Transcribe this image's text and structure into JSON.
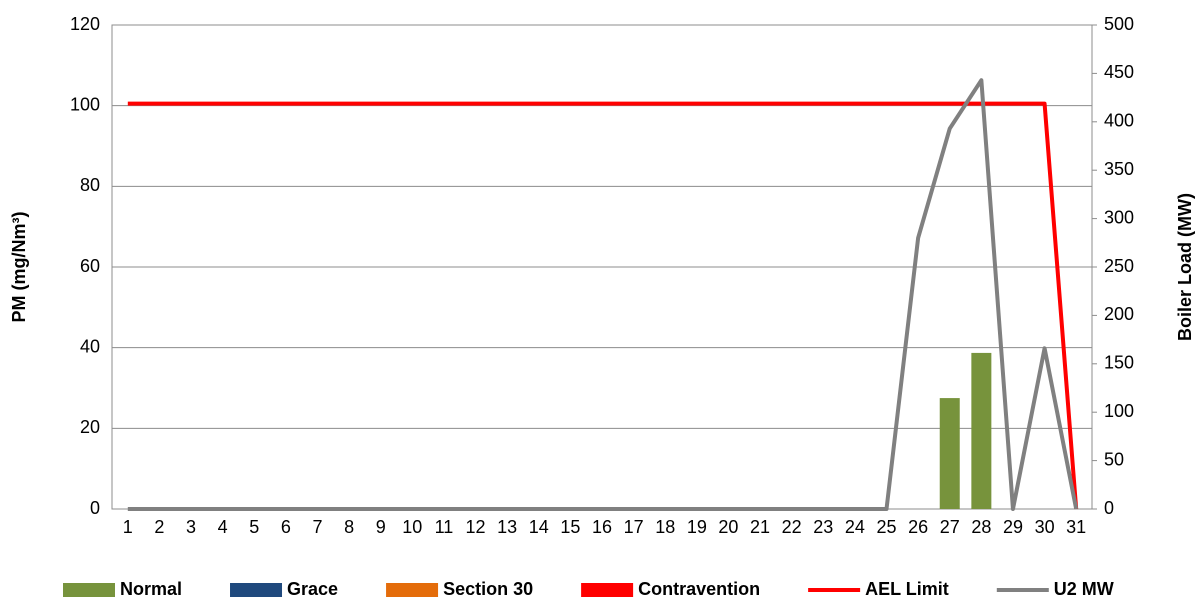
{
  "chart_data": {
    "type": "bar",
    "y_label": "PM (mg/Nm³)",
    "y2_label": "Boiler Load (MW)",
    "categories": [
      "1",
      "2",
      "3",
      "4",
      "5",
      "6",
      "7",
      "8",
      "9",
      "10",
      "11",
      "12",
      "13",
      "14",
      "15",
      "16",
      "17",
      "18",
      "19",
      "20",
      "21",
      "22",
      "23",
      "24",
      "25",
      "26",
      "27",
      "28",
      "29",
      "30",
      "31"
    ],
    "ylim": [
      0,
      120
    ],
    "yticks": [
      0,
      20,
      40,
      60,
      80,
      100,
      120
    ],
    "y2lim": [
      0,
      500
    ],
    "y2ticks": [
      0,
      50,
      100,
      150,
      200,
      250,
      300,
      350,
      400,
      450,
      500
    ],
    "grid": true,
    "stacked": true,
    "legend": "bottom",
    "series": [
      {
        "name": "Normal",
        "type": "bar",
        "color": "#77933c",
        "values": [
          0,
          0,
          0,
          0,
          0,
          0,
          0,
          0,
          0,
          0,
          0,
          0,
          0,
          0,
          0,
          0,
          0,
          0,
          0,
          0,
          0,
          0,
          0,
          0,
          0,
          0,
          27.5,
          38.7,
          0,
          0,
          0
        ]
      },
      {
        "name": "Grace",
        "type": "bar",
        "color": "#1f497d",
        "values": [
          0,
          0,
          0,
          0,
          0,
          0,
          0,
          0,
          0,
          0,
          0,
          0,
          0,
          0,
          0,
          0,
          0,
          0,
          0,
          0,
          0,
          0,
          0,
          0,
          0,
          0,
          0,
          0,
          0,
          0,
          0
        ]
      },
      {
        "name": "Section 30",
        "type": "bar",
        "color": "#e46c0a",
        "values": [
          0,
          0,
          0,
          0,
          0,
          0,
          0,
          0,
          0,
          0,
          0,
          0,
          0,
          0,
          0,
          0,
          0,
          0,
          0,
          0,
          0,
          0,
          0,
          0,
          0,
          0,
          0,
          0,
          0,
          0,
          0
        ]
      },
      {
        "name": "Contravention",
        "type": "bar",
        "color": "#ff0000",
        "values": [
          0,
          0,
          0,
          0,
          0,
          0,
          0,
          0,
          0,
          0,
          0,
          0,
          0,
          0,
          0,
          0,
          0,
          0,
          0,
          0,
          0,
          0,
          0,
          0,
          0,
          0,
          0,
          0,
          0,
          0,
          0
        ]
      },
      {
        "name": "AEL Limit",
        "type": "line",
        "color": "#ff0000",
        "values": [
          100.5,
          100.5,
          100.5,
          100.5,
          100.5,
          100.5,
          100.5,
          100.5,
          100.5,
          100.5,
          100.5,
          100.5,
          100.5,
          100.5,
          100.5,
          100.5,
          100.5,
          100.5,
          100.5,
          100.5,
          100.5,
          100.5,
          100.5,
          100.5,
          100.5,
          100.5,
          100.5,
          100.5,
          100.5,
          100.5,
          0
        ]
      },
      {
        "name": "U2 MW",
        "type": "line",
        "axis": "y2",
        "color": "#808080",
        "values": [
          0,
          0,
          0,
          0,
          0,
          0,
          0,
          0,
          0,
          0,
          0,
          0,
          0,
          0,
          0,
          0,
          0,
          0,
          0,
          0,
          0,
          0,
          0,
          0,
          0,
          280,
          393,
          443,
          0,
          166,
          0
        ]
      }
    ]
  }
}
